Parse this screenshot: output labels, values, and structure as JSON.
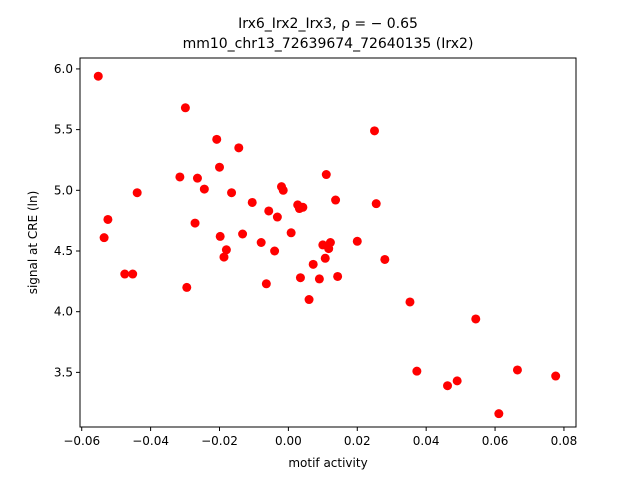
{
  "chart_data": {
    "type": "scatter",
    "title_line1": "Irx6_Irx2_Irx3, ρ = − 0.65",
    "title_line2": "mm10_chr13_72639674_72640135 (Irx2)",
    "xlabel": "motif activity",
    "ylabel": "signal at CRE (ln)",
    "xlim": [
      -0.0605,
      0.0835
    ],
    "ylim": [
      3.05,
      6.09
    ],
    "xticks": [
      -0.06,
      -0.04,
      -0.02,
      0.0,
      0.02,
      0.04,
      0.06,
      0.08
    ],
    "xtick_labels": [
      "−0.06",
      "−0.04",
      "−0.02",
      "0.00",
      "0.02",
      "0.04",
      "0.06",
      "0.08"
    ],
    "yticks": [
      3.5,
      4.0,
      4.5,
      5.0,
      5.5,
      6.0
    ],
    "ytick_labels": [
      "3.5",
      "4.0",
      "4.5",
      "5.0",
      "5.5",
      "6.0"
    ],
    "marker_color": "#ff0000",
    "points": [
      {
        "x": -0.0552,
        "y": 5.94
      },
      {
        "x": -0.0535,
        "y": 4.61
      },
      {
        "x": -0.0524,
        "y": 4.76
      },
      {
        "x": -0.0475,
        "y": 4.31
      },
      {
        "x": -0.0452,
        "y": 4.31
      },
      {
        "x": -0.0439,
        "y": 4.98
      },
      {
        "x": -0.0315,
        "y": 5.11
      },
      {
        "x": -0.0299,
        "y": 5.68
      },
      {
        "x": -0.0295,
        "y": 4.2
      },
      {
        "x": -0.0271,
        "y": 4.73
      },
      {
        "x": -0.0264,
        "y": 5.1
      },
      {
        "x": -0.0244,
        "y": 5.01
      },
      {
        "x": -0.0208,
        "y": 5.42
      },
      {
        "x": -0.02,
        "y": 5.19
      },
      {
        "x": -0.0198,
        "y": 4.62
      },
      {
        "x": -0.0187,
        "y": 4.45
      },
      {
        "x": -0.018,
        "y": 4.51
      },
      {
        "x": -0.0165,
        "y": 4.98
      },
      {
        "x": -0.0144,
        "y": 5.35
      },
      {
        "x": -0.0133,
        "y": 4.64
      },
      {
        "x": -0.0105,
        "y": 4.9
      },
      {
        "x": -0.0079,
        "y": 4.57
      },
      {
        "x": -0.0064,
        "y": 4.23
      },
      {
        "x": -0.0057,
        "y": 4.83
      },
      {
        "x": -0.004,
        "y": 4.5
      },
      {
        "x": -0.0032,
        "y": 4.78
      },
      {
        "x": -0.002,
        "y": 5.03
      },
      {
        "x": -0.0015,
        "y": 5.0
      },
      {
        "x": 0.0008,
        "y": 4.65
      },
      {
        "x": 0.0027,
        "y": 4.88
      },
      {
        "x": 0.0032,
        "y": 4.85
      },
      {
        "x": 0.0035,
        "y": 4.28
      },
      {
        "x": 0.0042,
        "y": 4.86
      },
      {
        "x": 0.006,
        "y": 4.1
      },
      {
        "x": 0.0072,
        "y": 4.39
      },
      {
        "x": 0.009,
        "y": 4.27
      },
      {
        "x": 0.01,
        "y": 4.55
      },
      {
        "x": 0.0107,
        "y": 4.44
      },
      {
        "x": 0.011,
        "y": 5.13
      },
      {
        "x": 0.0117,
        "y": 4.52
      },
      {
        "x": 0.0122,
        "y": 4.57
      },
      {
        "x": 0.0137,
        "y": 4.92
      },
      {
        "x": 0.0143,
        "y": 4.29
      },
      {
        "x": 0.02,
        "y": 4.58
      },
      {
        "x": 0.025,
        "y": 5.49
      },
      {
        "x": 0.0255,
        "y": 4.89
      },
      {
        "x": 0.028,
        "y": 4.43
      },
      {
        "x": 0.0353,
        "y": 4.08
      },
      {
        "x": 0.0373,
        "y": 3.51
      },
      {
        "x": 0.0462,
        "y": 3.39
      },
      {
        "x": 0.049,
        "y": 3.43
      },
      {
        "x": 0.0544,
        "y": 3.94
      },
      {
        "x": 0.0611,
        "y": 3.16
      },
      {
        "x": 0.0665,
        "y": 3.52
      },
      {
        "x": 0.0776,
        "y": 3.47
      }
    ]
  }
}
